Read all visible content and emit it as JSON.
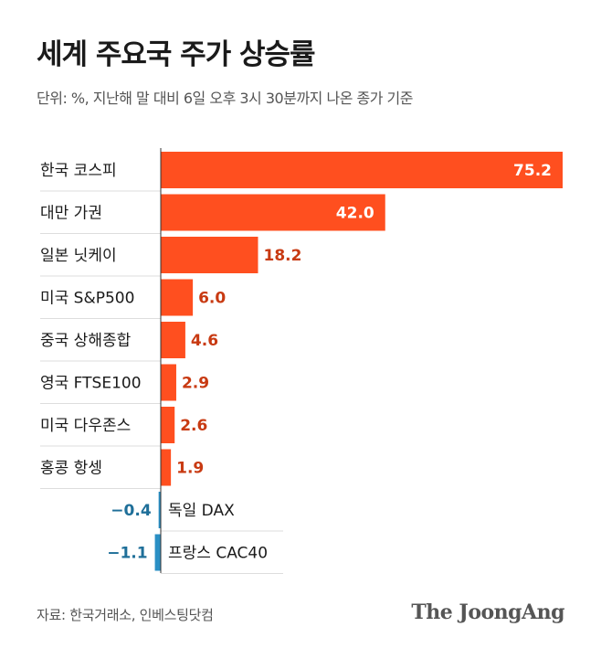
{
  "header": {
    "title": "세계 주요국 주가 상승률",
    "subtitle": "단위: %, 지난해 말 대비 6일 오후 3시 30분까지 나온 종가 기준"
  },
  "footer": {
    "source": "자료: 한국거래소, 인베스팅닷컴",
    "logo": "The JoongAng"
  },
  "colors": {
    "positive_bar": "#ff4f1f",
    "positive_label": "#c83a12",
    "negative_bar": "#2a8fc4",
    "negative_label": "#1f6f99",
    "inside_label": "#ffffff",
    "grid": "#dddddd",
    "axis": "#333333"
  },
  "chart_data": {
    "type": "bar",
    "orientation": "horizontal",
    "categories": [
      "한국 코스피",
      "대만 가권",
      "일본 닛케이",
      "미국 S&P500",
      "중국 상해종합",
      "영국 FTSE100",
      "미국 다우존스",
      "홍콩 항셍",
      "독일 DAX",
      "프랑스 CAC40"
    ],
    "values": [
      75.2,
      42.0,
      18.2,
      6.0,
      4.6,
      2.9,
      2.6,
      1.9,
      -0.4,
      -1.1
    ],
    "value_labels": [
      "75.2",
      "42.0",
      "18.2",
      "6.0",
      "4.6",
      "2.9",
      "2.6",
      "1.9",
      "−0.4",
      "−1.1"
    ],
    "title": "세계 주요국 주가 상승률",
    "subtitle": "단위: %, 지난해 말 대비 6일 오후 3시 30분까지 나온 종가 기준",
    "xlabel": "",
    "ylabel": "",
    "xlim": [
      -1.1,
      75.2
    ],
    "grid": false,
    "legend": "none"
  }
}
